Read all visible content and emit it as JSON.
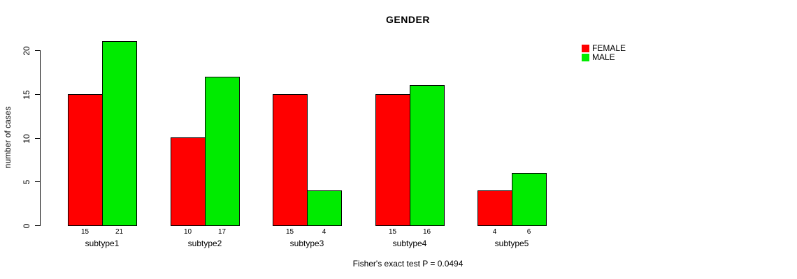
{
  "chart_data": {
    "type": "bar",
    "title": "GENDER",
    "subtitle": "Fisher's exact test P = 0.0494",
    "xlabel": "",
    "ylabel": "number of cases",
    "categories": [
      "subtype1",
      "subtype2",
      "subtype3",
      "subtype4",
      "subtype5"
    ],
    "series": [
      {
        "name": "FEMALE",
        "color": "#FF0000",
        "values": [
          15,
          10,
          15,
          15,
          4
        ]
      },
      {
        "name": "MALE",
        "color": "#00EB00",
        "values": [
          21,
          17,
          4,
          16,
          6
        ]
      }
    ],
    "yticks": [
      0,
      5,
      10,
      15,
      20
    ],
    "ylim": [
      0,
      20
    ],
    "grid": false,
    "bar_value_labels": true,
    "legend_position": "top-right",
    "axis_color": "#000000",
    "background_color": "#FFFFFF"
  }
}
